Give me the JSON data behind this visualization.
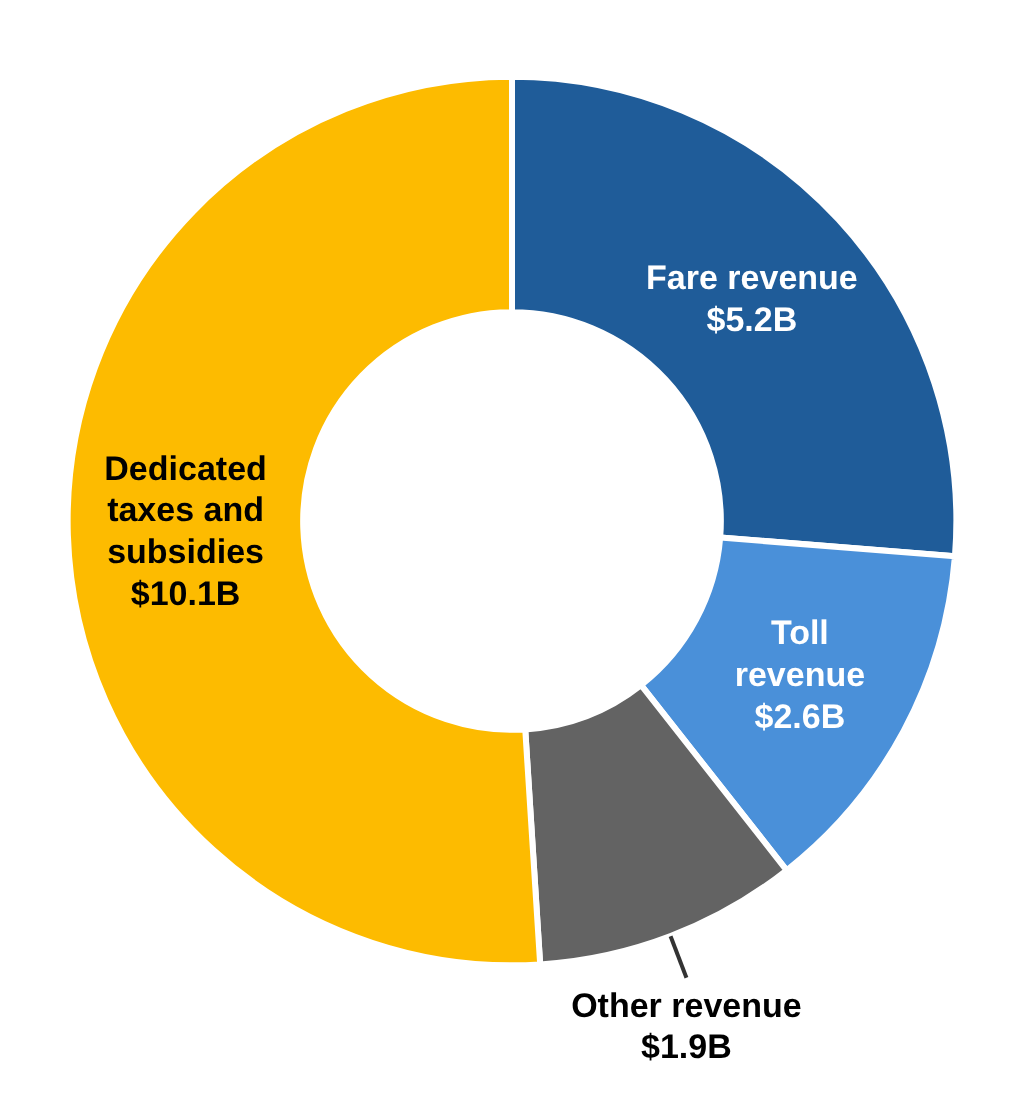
{
  "chart_data": {
    "type": "donut",
    "categories": [
      "Fare revenue",
      "Toll revenue",
      "Other revenue",
      "Dedicated taxes and subsidies"
    ],
    "values": [
      5.2,
      2.6,
      1.9,
      10.1
    ],
    "colors": [
      "#1f5c99",
      "#4a90d9",
      "#636363",
      "#fdbb00"
    ],
    "value_labels": [
      "$5.2B",
      "$2.6B",
      "$1.9B",
      "$10.1B"
    ],
    "legend": false
  }
}
